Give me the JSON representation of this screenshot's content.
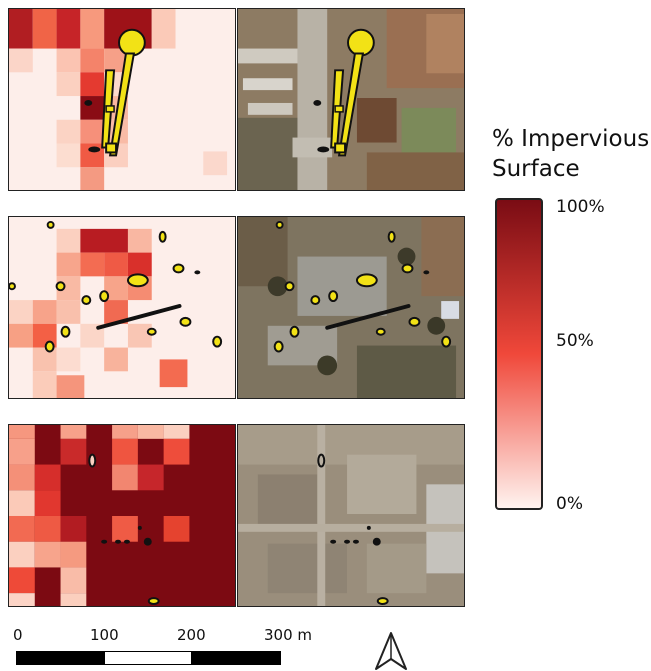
{
  "legend": {
    "title_line1": "% Impervious",
    "title_line2": "Surface",
    "label_max": "100%",
    "label_mid": "50%",
    "label_min": "0%",
    "color_high": "#7a0c14",
    "color_mid": "#f0483a",
    "color_low": "#fff3ef"
  },
  "scale": {
    "tick_0": "0",
    "tick_1": "100",
    "tick_2": "200",
    "tick_3": "300 m"
  },
  "colors": {
    "annotation_fill": "#f2e216",
    "annotation_stroke": "#111111"
  },
  "icons": {
    "north_arrow": "north-arrow-icon"
  }
}
